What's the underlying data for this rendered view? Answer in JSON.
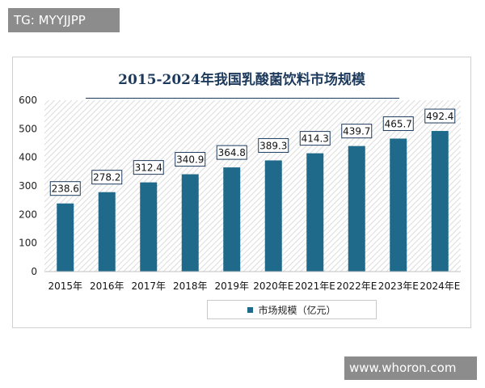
{
  "watermarks": {
    "top": "TG: MYYJJPP",
    "bottom": "www.whoron.com"
  },
  "colors": {
    "bar": "#1f6a8a",
    "title": "#1d3a5c",
    "hatch": "#d9d9d9"
  },
  "chart_data": {
    "type": "bar",
    "title": "2015-2024年我国乳酸菌饮料市场规模",
    "categories": [
      "2015年",
      "2016年",
      "2017年",
      "2018年",
      "2019年",
      "2020年E",
      "2021年E",
      "2022年E",
      "2023年E",
      "2024年E"
    ],
    "series": [
      {
        "name": "市场规模（亿元）",
        "values": [
          238.6,
          278.2,
          312.4,
          340.9,
          364.8,
          389.3,
          414.3,
          439.7,
          465.7,
          492.4
        ]
      }
    ],
    "yticks": [
      0,
      100,
      200,
      300,
      400,
      500,
      600
    ],
    "ylim": [
      0,
      600
    ],
    "xlabel": "",
    "ylabel": "",
    "grid": false,
    "legend": "bottom-center",
    "data_labels": true
  }
}
